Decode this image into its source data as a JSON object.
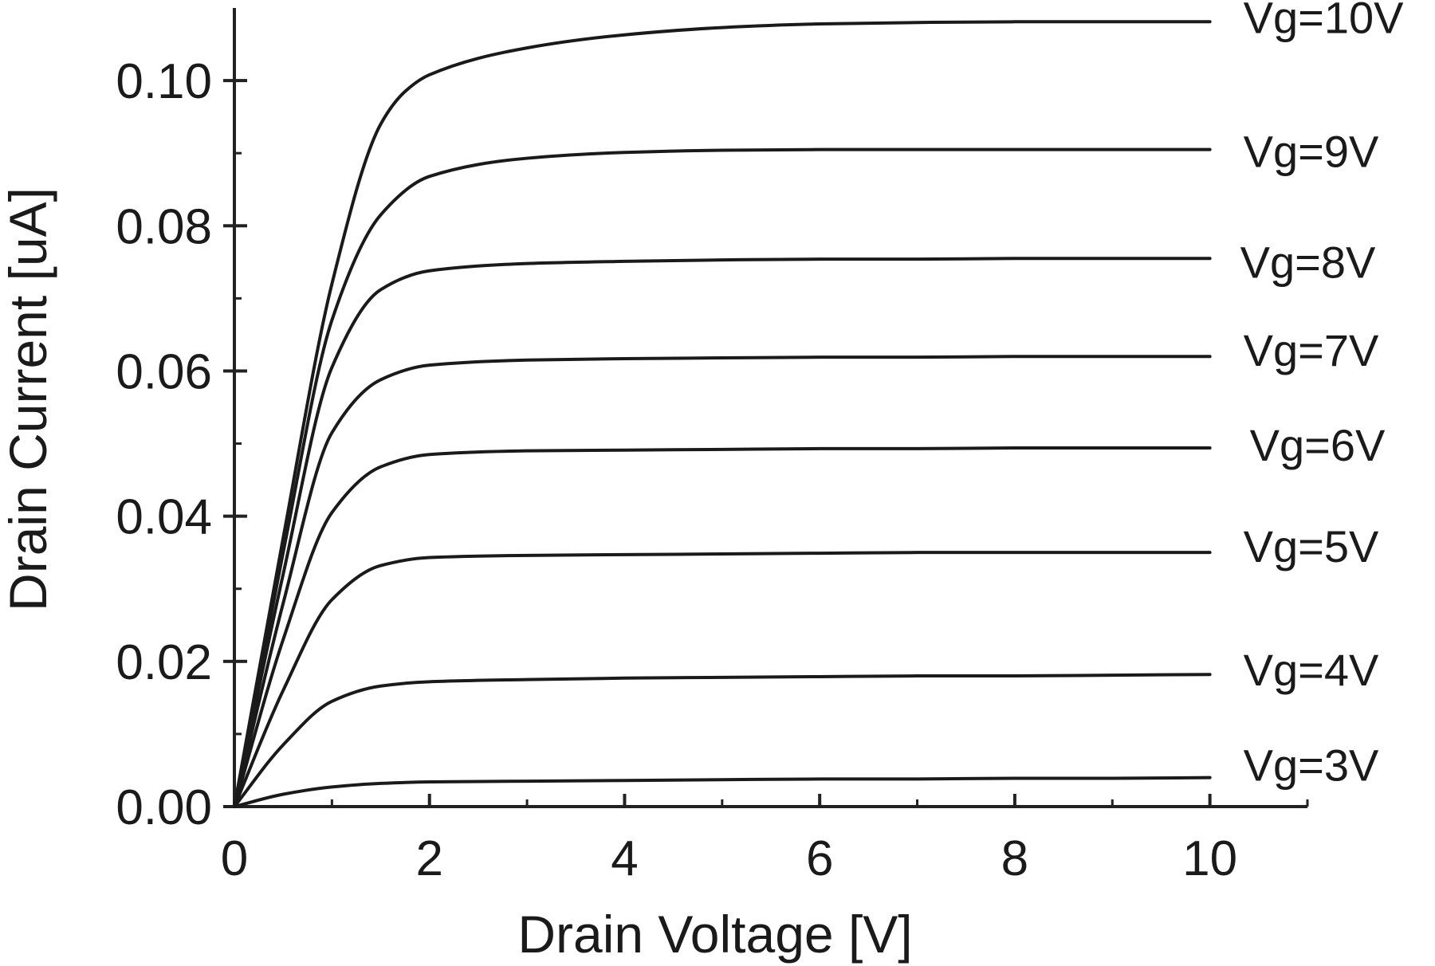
{
  "chart_data": {
    "type": "line",
    "xlabel": "Drain Voltage [V]",
    "ylabel": "Drain Current [uA]",
    "xlim": [
      0,
      11
    ],
    "ylim": [
      0,
      0.11
    ],
    "xticks": [
      0,
      2,
      4,
      6,
      8,
      10
    ],
    "yticks": [
      0.0,
      0.02,
      0.04,
      0.06,
      0.08,
      0.1
    ],
    "xtick_labels": [
      "0",
      "2",
      "4",
      "6",
      "8",
      "10"
    ],
    "ytick_labels": [
      "0.00",
      "0.02",
      "0.04",
      "0.06",
      "0.08",
      "0.10"
    ],
    "grid": false,
    "legend": "inline labels at right end of each curve",
    "series": [
      {
        "name": "Vg=3V",
        "x": [
          0,
          0.5,
          1,
          1.5,
          2,
          3,
          4,
          5,
          6,
          7,
          8,
          9,
          10
        ],
        "y": [
          0,
          0.0017,
          0.0027,
          0.0032,
          0.0034,
          0.0035,
          0.0036,
          0.0037,
          0.0038,
          0.0038,
          0.0039,
          0.0039,
          0.004
        ]
      },
      {
        "name": "Vg=4V",
        "x": [
          0,
          0.5,
          1,
          1.5,
          2,
          3,
          4,
          5,
          6,
          7,
          8,
          9,
          10
        ],
        "y": [
          0,
          0.0085,
          0.0145,
          0.0166,
          0.0172,
          0.0175,
          0.0177,
          0.0178,
          0.0179,
          0.018,
          0.018,
          0.0181,
          0.0182
        ]
      },
      {
        "name": "Vg=5V",
        "x": [
          0,
          0.5,
          1,
          1.5,
          2,
          3,
          4,
          5,
          6,
          7,
          8,
          9,
          10
        ],
        "y": [
          0,
          0.016,
          0.0285,
          0.0332,
          0.0343,
          0.0346,
          0.0347,
          0.0348,
          0.0349,
          0.035,
          0.035,
          0.035,
          0.035
        ]
      },
      {
        "name": "Vg=6V",
        "x": [
          0,
          0.5,
          1,
          1.5,
          2,
          3,
          4,
          5,
          6,
          7,
          8,
          9,
          10
        ],
        "y": [
          0,
          0.023,
          0.0405,
          0.0468,
          0.0485,
          0.049,
          0.0491,
          0.0492,
          0.0493,
          0.0493,
          0.0494,
          0.0494,
          0.0494
        ]
      },
      {
        "name": "Vg=7V",
        "x": [
          0,
          0.5,
          1,
          1.5,
          2,
          3,
          4,
          5,
          6,
          7,
          8,
          9,
          10
        ],
        "y": [
          0,
          0.028,
          0.0515,
          0.0588,
          0.0608,
          0.0615,
          0.0617,
          0.0618,
          0.0619,
          0.0619,
          0.062,
          0.062,
          0.062
        ]
      },
      {
        "name": "Vg=8V",
        "x": [
          0,
          0.5,
          1,
          1.5,
          2,
          3,
          4,
          5,
          6,
          7,
          8,
          9,
          10
        ],
        "y": [
          0,
          0.032,
          0.0605,
          0.0712,
          0.0738,
          0.0748,
          0.0751,
          0.0753,
          0.0754,
          0.0754,
          0.0755,
          0.0755,
          0.0755
        ]
      },
      {
        "name": "Vg=9V",
        "x": [
          0,
          0.5,
          1,
          1.5,
          2,
          3,
          4,
          5,
          6,
          7,
          8,
          9,
          10
        ],
        "y": [
          0,
          0.035,
          0.067,
          0.0815,
          0.0868,
          0.0893,
          0.0901,
          0.0904,
          0.0905,
          0.0905,
          0.0905,
          0.0905,
          0.0905
        ]
      },
      {
        "name": "Vg=10V",
        "x": [
          0,
          0.5,
          1,
          1.5,
          1.75,
          2,
          3,
          4,
          5,
          6,
          7,
          8,
          9,
          10
        ],
        "y": [
          0,
          0.037,
          0.072,
          0.094,
          0.0985,
          0.1008,
          0.1045,
          0.1063,
          0.1073,
          0.1078,
          0.108,
          0.1081,
          0.1081,
          0.1081
        ]
      }
    ]
  }
}
